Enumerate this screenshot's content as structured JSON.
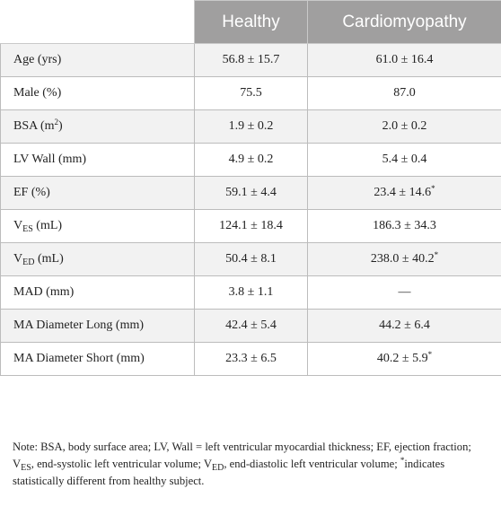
{
  "table": {
    "columns": [
      "",
      "Healthy",
      "Cardiomyopathy"
    ],
    "rows": [
      {
        "label": "Age (yrs)",
        "healthy": "56.8 ± 15.7",
        "cardio": "61.0 ± 16.4"
      },
      {
        "label": "Male (%)",
        "healthy": "75.5",
        "cardio": "87.0"
      },
      {
        "label_main": "BSA (m",
        "label_sup": "2",
        "label_tail": ")",
        "healthy": "1.9 ± 0.2",
        "cardio": "2.0 ± 0.2"
      },
      {
        "label": "LV Wall (mm)",
        "healthy": "4.9 ± 0.2",
        "cardio": "5.4 ± 0.4"
      },
      {
        "label": "EF (%)",
        "healthy": "59.1 ± 4.4",
        "cardio": "23.4 ± 14.6",
        "cardio_mark": "*"
      },
      {
        "label_main": "V",
        "label_sub": "ES",
        "label_tail": " (mL)",
        "healthy": "124.1 ± 18.4",
        "cardio": "186.3 ± 34.3"
      },
      {
        "label_main": "V",
        "label_sub": "ED",
        "label_tail": " (mL)",
        "healthy": "50.4 ± 8.1",
        "cardio": "238.0 ± 40.2",
        "cardio_mark": "*"
      },
      {
        "label": "MAD (mm)",
        "healthy": "3.8 ± 1.1",
        "cardio": "—"
      },
      {
        "label": "MA Diameter Long (mm)",
        "healthy": "42.4 ± 5.4",
        "cardio": "44.2 ± 6.4"
      },
      {
        "label": "MA Diameter Short (mm)",
        "healthy": "23.3 ± 6.5",
        "cardio": "40.2 ± 5.9",
        "cardio_mark": "*"
      }
    ]
  },
  "note": {
    "p1": "Note: BSA, body surface area; LV, Wall = left ventricular myocardial thickness; EF, ejection fraction; V",
    "s1": "ES",
    "p2": ", end-systolic left ventricular volume; V",
    "s2": "ED",
    "p3": ", end-diastolic left ventricular volume; ",
    "mark": "*",
    "p4": "indicates statistically different from healthy subject."
  }
}
